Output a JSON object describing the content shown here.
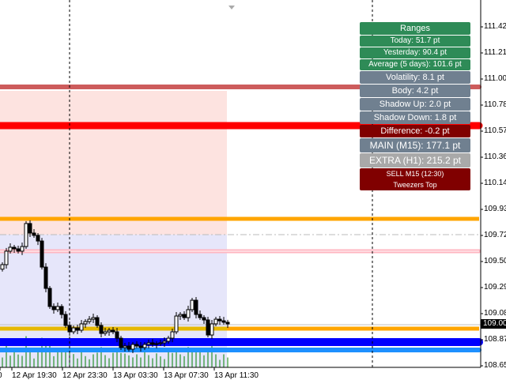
{
  "price_axis": [
    "111.42",
    "111.21",
    "111.00",
    "110.78",
    "110.57",
    "110.36",
    "110.14",
    "109.93",
    "109.72",
    "109.50",
    "109.29",
    "109.08",
    "108.87",
    "108.65"
  ],
  "current_price": "109.00",
  "time_axis": [
    "0",
    "12 Apr 19:30",
    "12 Apr 23:30",
    "13 Apr 03:30",
    "13 Apr 07:30",
    "13 Apr 11:30"
  ],
  "colors": {
    "green": "#2e8b57",
    "slate": "#708090",
    "maroon": "#800000",
    "silver": "#a9a9a9",
    "red_line": "#ff0000",
    "indian_red": "#cd5c5c",
    "orange": "#ffa500",
    "gold": "#e6b800",
    "blue": "#0000ff",
    "dodger": "#1e90ff",
    "pink": "#ffb6c1",
    "volume": "#008000"
  },
  "panel": {
    "title": "Ranges",
    "today": "Today: 51.7 pt",
    "yesterday": "Yesterday: 90.4 pt",
    "average": "Average (5 days): 101.6 pt",
    "volatility": "Volatility: 8.1 pt",
    "body": "Body: 4.2 pt",
    "shadow_up": "Shadow Up: 2.0 pt",
    "shadow_down": "Shadow Down: 1.8 pt",
    "difference": "Difference: -0.2 pt",
    "main": "MAIN (M15): 177.1 pt",
    "extra": "EXTRA (H1): 215.2 pt",
    "signal": "SELL M15 (12:30)",
    "pattern": "Tweezers Top"
  },
  "closes": [
    109.477,
    109.587,
    109.619,
    109.606,
    109.587,
    109.625,
    109.813,
    109.735,
    109.716,
    109.67,
    109.457,
    109.283,
    109.135,
    109.109,
    109.135,
    109.07,
    108.98,
    108.928,
    108.96,
    108.941,
    108.993,
    109.012,
    109.031,
    109.044,
    108.98,
    108.915,
    108.928,
    108.941,
    108.928,
    108.876,
    108.799,
    108.812,
    108.786,
    108.825,
    108.812,
    108.799,
    108.825,
    108.838,
    108.825,
    108.831,
    108.838,
    108.851,
    108.876,
    108.928,
    109.057,
    109.07,
    109.044,
    109.109,
    109.186,
    109.07,
    109.044,
    109.025,
    108.902,
    108.993,
    109.031,
    109.018,
    109.006,
    108.993
  ]
}
